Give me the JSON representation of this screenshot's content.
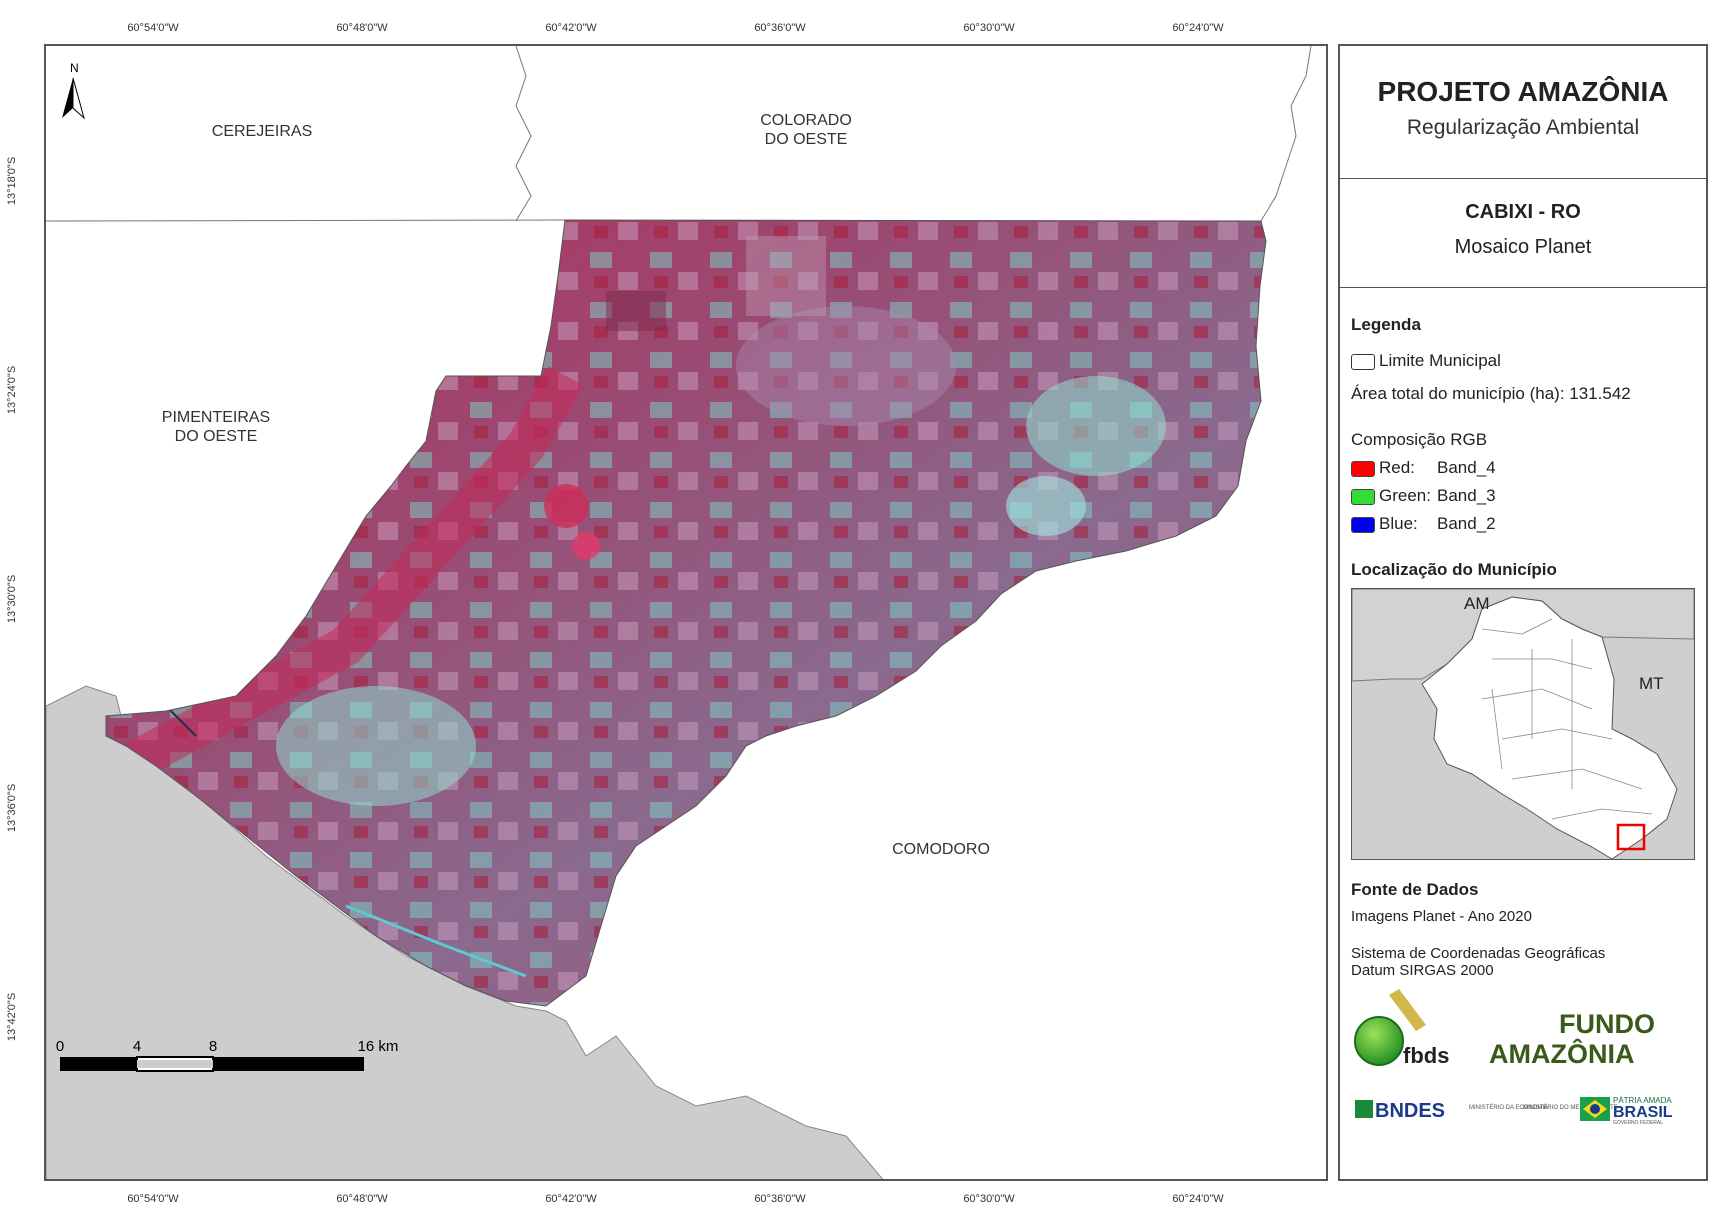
{
  "coordinates": {
    "longitudes": [
      "60°54'0\"W",
      "60°48'0\"W",
      "60°42'0\"W",
      "60°36'0\"W",
      "60°30'0\"W",
      "60°24'0\"W"
    ],
    "latitudes": [
      "13°18'0\"S",
      "13°24'0\"S",
      "13°30'0\"S",
      "13°36'0\"S",
      "13°42'0\"S"
    ]
  },
  "map": {
    "north_label": "N",
    "neighbors": {
      "cerejeiras": "CEREJEIRAS",
      "colorado_1": "COLORADO",
      "colorado_2": "DO OESTE",
      "pimenteiras_1": "PIMENTEIRAS",
      "pimenteiras_2": "DO OESTE",
      "comodoro": "COMODORO"
    },
    "scale": {
      "labels": [
        "0",
        "4",
        "8",
        "16 km"
      ]
    }
  },
  "panel": {
    "title": "PROJETO AMAZÔNIA",
    "subtitle": "Regularização Ambiental",
    "municipality": "CABIXI - RO",
    "mosaic": "Mosaico Planet",
    "legend": {
      "heading": "Legenda",
      "limit_label": "Limite Municipal",
      "area_label": "Área total do município (ha): 131.542",
      "rgb_heading": "Composição RGB",
      "bands": [
        {
          "label": "Red:",
          "band": "Band_4",
          "color": "#ff0000"
        },
        {
          "label": "Green:",
          "band": "Band_3",
          "color": "#33dd33"
        },
        {
          "label": "Blue:",
          "band": "Band_2",
          "color": "#0000ee"
        }
      ]
    },
    "location": {
      "heading": "Localização do Município",
      "am": "AM",
      "mt": "MT"
    },
    "sources": {
      "heading": "Fonte de Dados",
      "line1": "Imagens Planet - Ano 2020",
      "line2": "Sistema de Coordenadas Geográficas",
      "line3": "Datum SIRGAS 2000"
    },
    "logos": {
      "fbds": "fbds",
      "fundo_1": "FUNDO",
      "fundo_2": "AMAZÔNIA",
      "bndes": "BNDES",
      "min_eco": "MINISTÉRIO DA ECONOMIA",
      "min_amb": "MINISTÉRIO DO MEIO AMBIENTE",
      "patria": "PÁTRIA AMADA",
      "brasil": "BRASIL",
      "gov": "GOVERNO FEDERAL"
    }
  }
}
